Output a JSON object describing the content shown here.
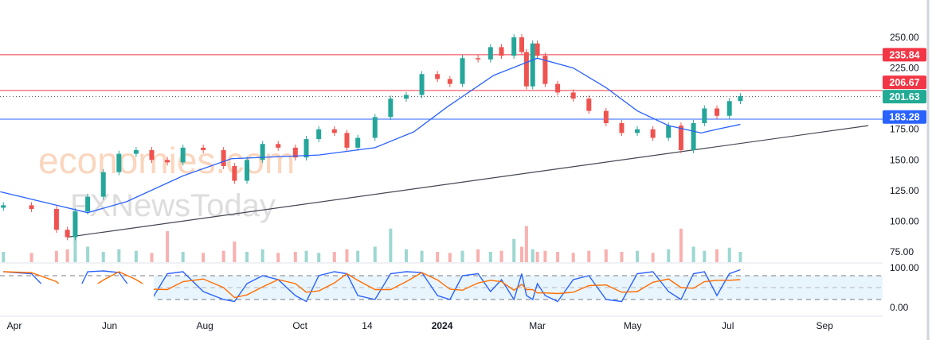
{
  "chart_data": {
    "type": "candlestick",
    "x_unit": "days since 2023-04-01",
    "price_axis": {
      "ylim": [
        75,
        250
      ],
      "ticks": [
        "250.00",
        "225.00",
        "175.00",
        "150.00",
        "125.00",
        "100.00",
        "75.00"
      ],
      "tick_values": [
        250,
        225,
        175,
        150,
        125,
        100,
        75
      ]
    },
    "stoch_axis": {
      "ylim": [
        0,
        100
      ],
      "ticks": [
        "100.00",
        "0.00"
      ],
      "tick_values": [
        100,
        0
      ],
      "bands": [
        20,
        50,
        80
      ]
    },
    "time_axis": {
      "ticks": [
        {
          "label": "Apr",
          "day": 0
        },
        {
          "label": "Jun",
          "day": 61
        },
        {
          "label": "Aug",
          "day": 122
        },
        {
          "label": "Oct",
          "day": 183
        },
        {
          "label": "14",
          "day": 226
        },
        {
          "label": "2024",
          "day": 274,
          "bold": true
        },
        {
          "label": "Mar",
          "day": 335
        },
        {
          "label": "May",
          "day": 396
        },
        {
          "label": "Jul",
          "day": 457
        },
        {
          "label": "Sep",
          "day": 519
        }
      ]
    },
    "closes": [
      [
        -7,
        113
      ],
      [
        11,
        110
      ],
      [
        27,
        93
      ],
      [
        34,
        87
      ],
      [
        39,
        108
      ],
      [
        47,
        120
      ],
      [
        57,
        140
      ],
      [
        67,
        155
      ],
      [
        78,
        158
      ],
      [
        88,
        150
      ],
      [
        98,
        148
      ],
      [
        108,
        160
      ],
      [
        121,
        158
      ],
      [
        134,
        145
      ],
      [
        141,
        133
      ],
      [
        149,
        150
      ],
      [
        159,
        163
      ],
      [
        169,
        160
      ],
      [
        180,
        152
      ],
      [
        187,
        167
      ],
      [
        195,
        175
      ],
      [
        205,
        172
      ],
      [
        213,
        160
      ],
      [
        220,
        168
      ],
      [
        231,
        185
      ],
      [
        241,
        200
      ],
      [
        251,
        203
      ],
      [
        261,
        220
      ],
      [
        271,
        216
      ],
      [
        279,
        212
      ],
      [
        287,
        233
      ],
      [
        297,
        232
      ],
      [
        305,
        242
      ],
      [
        312,
        235
      ],
      [
        320,
        250
      ],
      [
        325,
        238
      ],
      [
        328,
        210
      ],
      [
        332,
        245
      ],
      [
        335,
        235
      ],
      [
        340,
        212
      ],
      [
        348,
        205
      ],
      [
        358,
        200
      ],
      [
        368,
        190
      ],
      [
        379,
        180
      ],
      [
        389,
        172
      ],
      [
        399,
        175
      ],
      [
        409,
        168
      ],
      [
        419,
        178
      ],
      [
        427,
        158
      ],
      [
        435,
        180
      ],
      [
        442,
        192
      ],
      [
        450,
        186
      ],
      [
        458,
        198
      ],
      [
        465,
        202
      ]
    ],
    "sma": [
      [
        -9,
        124
      ],
      [
        47,
        107
      ],
      [
        72,
        116
      ],
      [
        108,
        137
      ],
      [
        139,
        151
      ],
      [
        195,
        154
      ],
      [
        231,
        160
      ],
      [
        256,
        173
      ],
      [
        277,
        193
      ],
      [
        307,
        219
      ],
      [
        335,
        233
      ],
      [
        358,
        225
      ],
      [
        379,
        209
      ],
      [
        399,
        190
      ],
      [
        419,
        178
      ],
      [
        440,
        172
      ],
      [
        450,
        175
      ],
      [
        465,
        179
      ]
    ],
    "volume": [
      20,
      18,
      22,
      25,
      70,
      30,
      20,
      25,
      22,
      18,
      60,
      20,
      18,
      22,
      40,
      20,
      25,
      18,
      20,
      22,
      18,
      20,
      25,
      22,
      30,
      65,
      25,
      22,
      20,
      18,
      22,
      25,
      20,
      22,
      45,
      30,
      70,
      25,
      20,
      22,
      20,
      18,
      22,
      25,
      20,
      22,
      18,
      25,
      65,
      30,
      22,
      25,
      28,
      20
    ],
    "stoch_k": [
      90,
      85,
      20,
      15,
      25,
      90,
      92,
      88,
      30,
      20,
      85,
      90,
      40,
      20,
      15,
      60,
      80,
      70,
      30,
      15,
      80,
      90,
      85,
      30,
      20,
      85,
      90,
      88,
      30,
      20,
      80,
      85,
      40,
      70,
      20,
      85,
      30,
      20,
      60,
      30,
      15,
      70,
      80,
      20,
      15,
      85,
      90,
      40,
      20,
      85,
      90,
      30,
      85,
      95
    ],
    "levels": [
      {
        "label": "235.84",
        "value": 235.84,
        "color": "#f23645",
        "style": "solid"
      },
      {
        "label": "206.67",
        "value": 206.67,
        "color": "#f23645",
        "style": "solid"
      },
      {
        "label": "201.63",
        "value": 201.63,
        "color": "#22ab94",
        "style": "dotted"
      },
      {
        "label": "183.28",
        "value": 183.28,
        "color": "#2962ff",
        "style": "solid"
      }
    ],
    "trendline": [
      [
        34,
        87
      ],
      [
        547,
        178
      ]
    ],
    "colors": {
      "up": "#26a69a",
      "down": "#ef5350",
      "sma": "#2962ff",
      "k": "#2962ff",
      "d": "#ff6d00",
      "trend": "#434651"
    }
  },
  "watermark": {
    "brand1": "economies.com",
    "brand2": "FXNewsToday"
  }
}
